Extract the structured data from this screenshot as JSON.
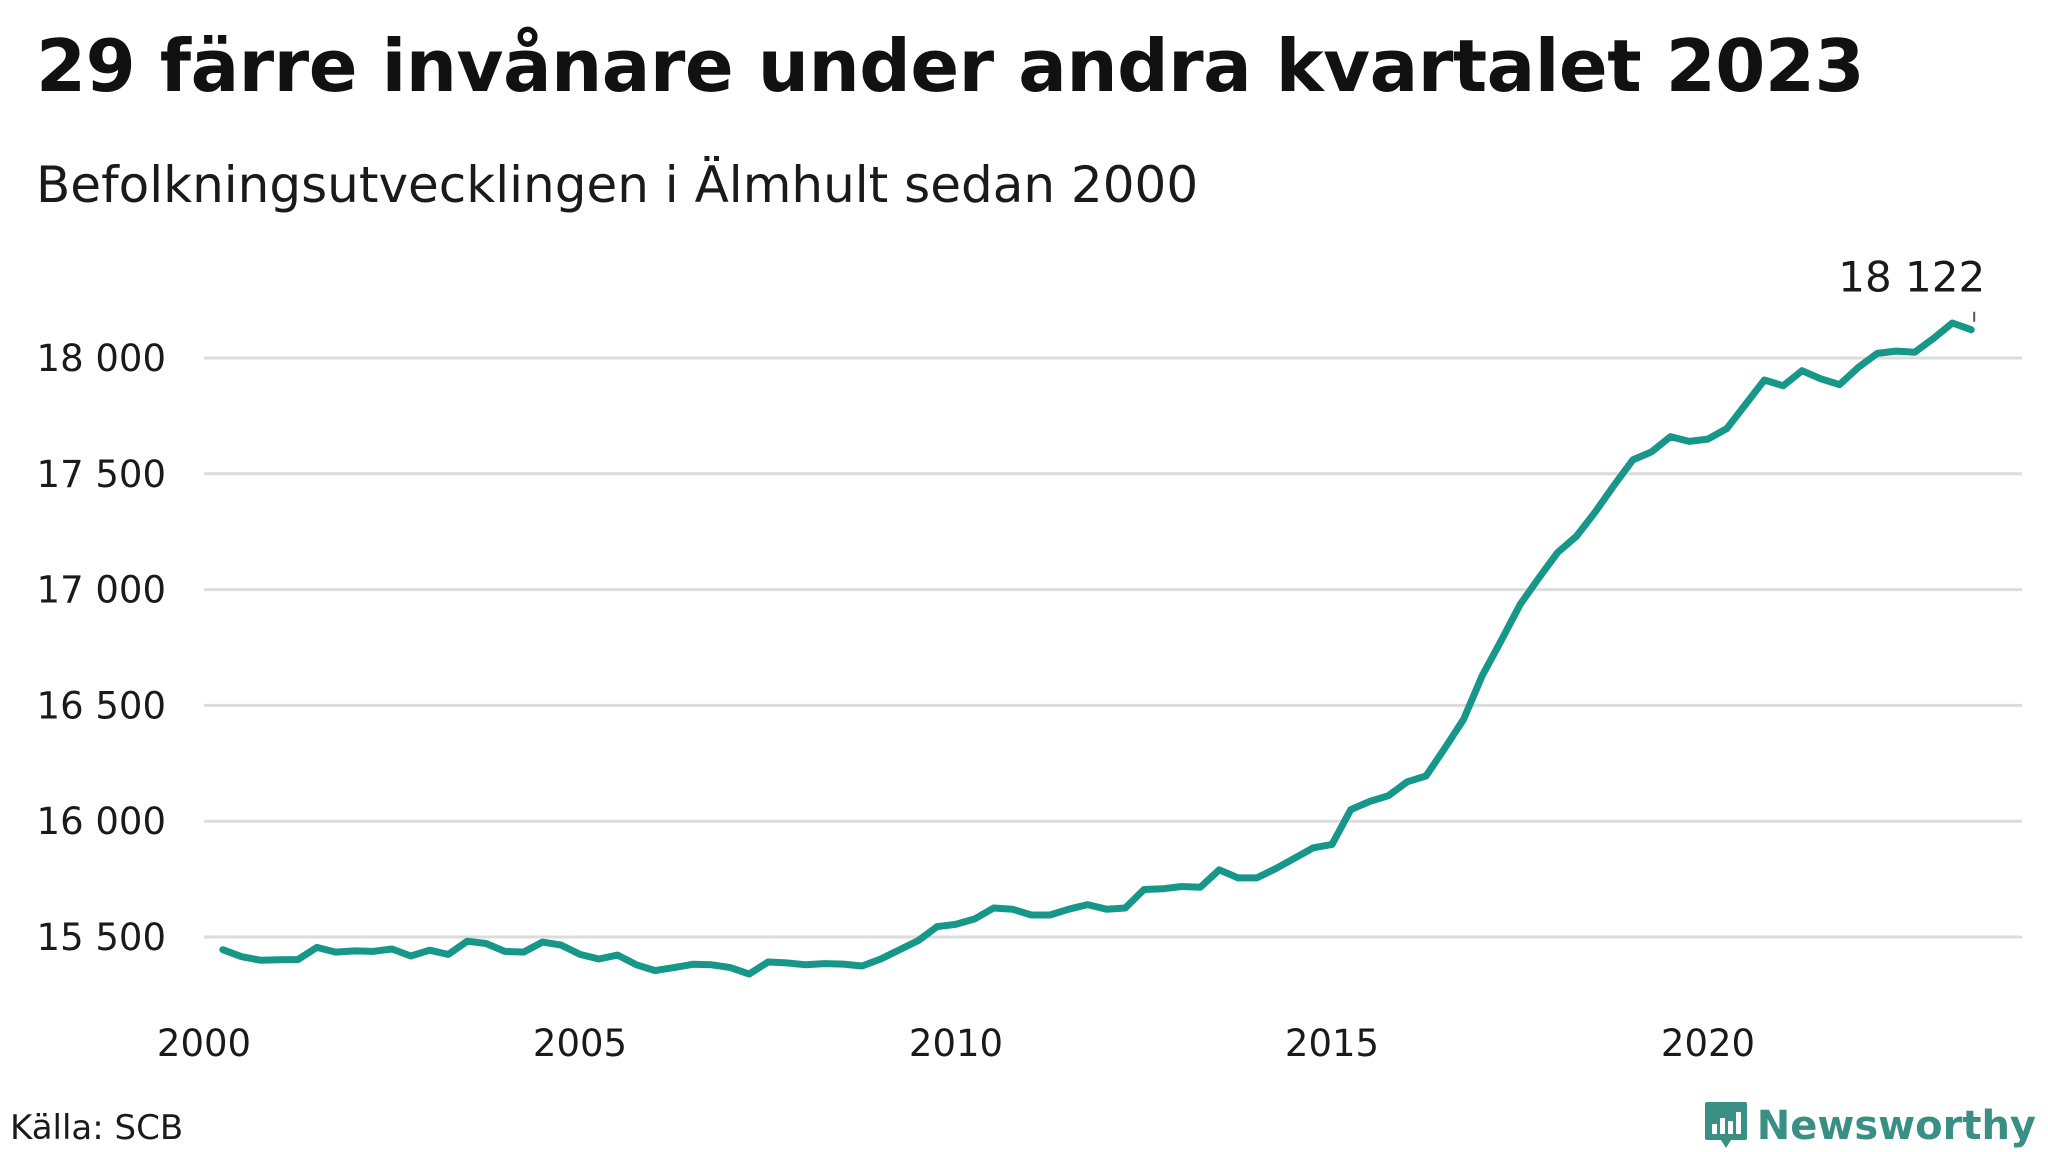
{
  "header": {
    "title": "29 färre invånare under andra kvartalet 2023",
    "subtitle": "Befolkningsutvecklingen i Älmhult sedan 2000"
  },
  "footer": {
    "source": "Källa: SCB",
    "brand": "Newsworthy"
  },
  "colors": {
    "line": "#17978a",
    "grid": "#dcdcdc",
    "brand": "#3a8f84"
  },
  "icons": {
    "brand_logo": "bar-chart-speech-bubble-icon"
  },
  "chart_data": {
    "type": "line",
    "title": "29 färre invånare under andra kvartalet 2023",
    "subtitle": "Befolkningsutvecklingen i Älmhult sedan 2000",
    "xlabel": "",
    "ylabel": "",
    "xlim": [
      2000,
      2024.25
    ],
    "ylim": [
      15300,
      18200
    ],
    "x_ticks": [
      2000,
      2005,
      2010,
      2015,
      2020
    ],
    "x_tick_labels": [
      "2000",
      "2005",
      "2010",
      "2015",
      "2020"
    ],
    "y_ticks": [
      15500,
      16000,
      16500,
      17000,
      17500,
      18000
    ],
    "y_tick_labels": [
      "15 500",
      "16 000",
      "16 500",
      "17 000",
      "17 500",
      "18 000"
    ],
    "grid": "horizontal",
    "end_label": "18 122",
    "series": [
      {
        "x": [
          2000.25,
          2000.5,
          2000.75,
          2001.0,
          2001.25,
          2001.5,
          2001.75,
          2002.0,
          2002.25,
          2002.5,
          2002.75,
          2003.0,
          2003.25,
          2003.5,
          2003.75,
          2004.0,
          2004.25,
          2004.5,
          2004.75,
          2005.0,
          2005.25,
          2005.5,
          2005.75,
          2006.0,
          2006.25,
          2006.5,
          2006.75,
          2007.0,
          2007.25,
          2007.5,
          2007.75,
          2008.0,
          2008.25,
          2008.5,
          2008.75,
          2009.0,
          2009.25,
          2009.5,
          2009.75,
          2010.0,
          2010.25,
          2010.5,
          2010.75,
          2011.0,
          2011.25,
          2011.5,
          2011.75,
          2012.0,
          2012.25,
          2012.5,
          2012.75,
          2013.0,
          2013.25,
          2013.5,
          2013.75,
          2014.0,
          2014.25,
          2014.5,
          2014.75,
          2015.0,
          2015.25,
          2015.5,
          2015.75,
          2016.0,
          2016.25,
          2016.5,
          2016.75,
          2017.0,
          2017.25,
          2017.5,
          2017.75,
          2018.0,
          2018.25,
          2018.5,
          2018.75,
          2019.0,
          2019.25,
          2019.5,
          2019.75,
          2020.0,
          2020.25,
          2020.5,
          2020.75,
          2021.0,
          2021.25,
          2021.5,
          2021.75,
          2022.0,
          2022.25,
          2022.5,
          2022.75,
          2023.0,
          2023.25,
          2023.5
        ],
        "values": [
          15445,
          15415,
          15400,
          15402,
          15403,
          15455,
          15435,
          15440,
          15438,
          15448,
          15418,
          15443,
          15425,
          15482,
          15472,
          15438,
          15435,
          15478,
          15465,
          15425,
          15405,
          15422,
          15380,
          15355,
          15368,
          15382,
          15380,
          15368,
          15340,
          15392,
          15388,
          15380,
          15385,
          15383,
          15375,
          15405,
          15445,
          15485,
          15545,
          15555,
          15578,
          15625,
          15620,
          15595,
          15595,
          15620,
          15640,
          15620,
          15625,
          15705,
          15708,
          15718,
          15715,
          15790,
          15755,
          15755,
          15795,
          15840,
          15885,
          15900,
          16050,
          16085,
          16110,
          16170,
          16195,
          16315,
          16440,
          16630,
          16780,
          16935,
          17050,
          17160,
          17230,
          17335,
          17450,
          17560,
          17595,
          17660,
          17640,
          17650,
          17695,
          17800,
          17905,
          17880,
          17945,
          17910,
          17885,
          17960,
          18020,
          18030,
          18025,
          18085,
          18151,
          18122
        ]
      }
    ]
  }
}
